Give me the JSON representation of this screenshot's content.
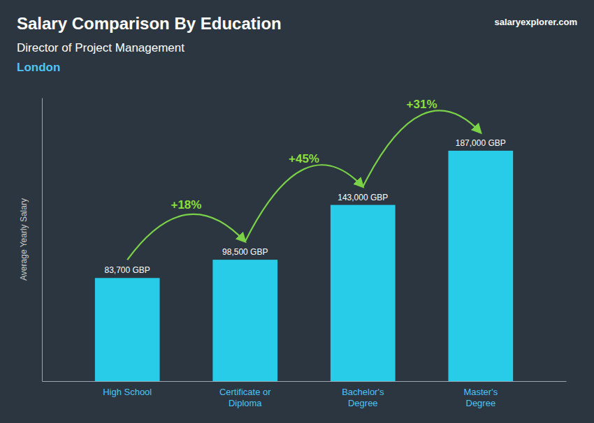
{
  "chart_data": {
    "type": "bar",
    "title": "Salary Comparison By Education",
    "subtitle": "Director of Project Management",
    "annotations": [
      "London",
      "salaryexplorer.com",
      "+18%",
      "+45%",
      "+31%"
    ],
    "ylabel": "Average Yearly Salary",
    "categories": [
      "High School",
      "Certificate or\nDiploma",
      "Bachelor's\nDegree",
      "Master's\nDegree"
    ],
    "values": [
      83700,
      98500,
      143000,
      187000
    ],
    "value_labels": [
      "83,700 GBP",
      "98,500 GBP",
      "143,000 GBP",
      "187,000 GBP"
    ],
    "data_labels": true,
    "color": "#29cce8",
    "ylim": [
      0,
      230000
    ],
    "tick_labels": "x",
    "grid": false
  }
}
